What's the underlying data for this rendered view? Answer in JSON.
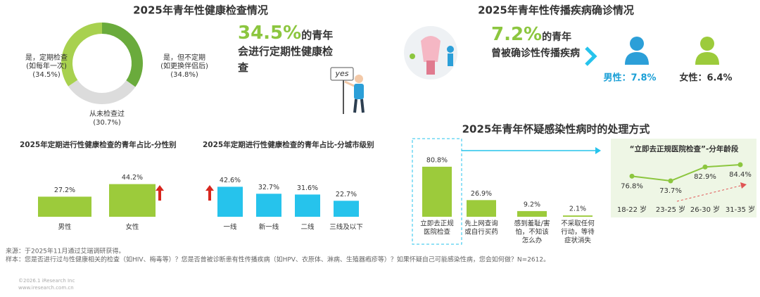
{
  "left_panel": {
    "title": "2025年青年性健康检查情况",
    "highlight": {
      "number": "34.5%",
      "text": "的青年会进行定期性健康检查"
    },
    "illustration_text": "yes"
  },
  "right_panel": {
    "title": "2025年青年性传播疾病确诊情况",
    "highlight": {
      "number": "7.2%",
      "text": "的青年曾被确诊性传播疾病"
    },
    "male": "男性：7.8%",
    "female": "女性：6.4%"
  },
  "chart_data": [
    {
      "type": "pie",
      "categories": [
        [
          "是，但不定期",
          "(如更换伴侣后)"
        ],
        [
          "从未检查过"
        ],
        [
          "是，定期检查",
          "(如每年一次)"
        ]
      ],
      "values": [
        34.8,
        30.7,
        34.5
      ],
      "value_labels": [
        "(34.8%)",
        "(30.7%)",
        "(34.5%)"
      ],
      "colors": [
        "#6aab3c",
        "#dcdcdc",
        "#a8d14f"
      ]
    },
    {
      "type": "bar",
      "title": "2025年定期进行性健康检查的青年占比-分性别",
      "categories": [
        "男性",
        "女性"
      ],
      "values": [
        27.2,
        44.2
      ],
      "value_labels": [
        "27.2%",
        "44.2%"
      ],
      "color": "#9ccb3b"
    },
    {
      "type": "bar",
      "title": "2025年定期进行性健康检查的青年占比-分城市级别",
      "categories": [
        "一线",
        "新一线",
        "二线",
        "三线及以下"
      ],
      "values": [
        42.6,
        32.7,
        31.6,
        22.7
      ],
      "value_labels": [
        "42.6%",
        "32.7%",
        "31.6%",
        "22.7%"
      ],
      "color": "#26c3ec"
    },
    {
      "type": "bar",
      "title": "2025年青年怀疑感染性病时的处理方式",
      "categories": [
        [
          "立即去正规",
          "医院检查"
        ],
        [
          "先上网查询",
          "或自行买药"
        ],
        [
          "感到羞耻/害",
          "怕，不知该",
          "怎么办"
        ],
        [
          "不采取任何",
          "行动，等待",
          "症状消失"
        ]
      ],
      "values": [
        80.8,
        26.9,
        9.2,
        2.1
      ],
      "value_labels": [
        "80.8%",
        "26.9%",
        "9.2%",
        "2.1%"
      ],
      "color": "#9ccb3b"
    },
    {
      "type": "line",
      "title": "“立即去正规医院检查”-分年龄段",
      "categories": [
        "18-22 岁",
        "23-25 岁",
        "26-30 岁",
        "31-35 岁"
      ],
      "values": [
        76.8,
        73.7,
        82.9,
        84.4
      ],
      "value_labels": [
        "76.8%",
        "73.7%",
        "82.9%",
        "84.4%"
      ],
      "color": "#8cc63f"
    }
  ],
  "footer": {
    "source": "来源：于2025年11月通过艾瑞调研获得。",
    "sample": "样本：您是否进行过与性健康相关的检查（如HIV、梅毒等）？您是否曾被诊断患有性传播疾病（如HPV、衣原体、淋病、生殖器疱疹等）？如果怀疑自己可能感染性病，您会如何做？N=2612。",
    "copyright": "©2026.1 iResearch Inc",
    "website": "www.iresearch.com.cn"
  }
}
